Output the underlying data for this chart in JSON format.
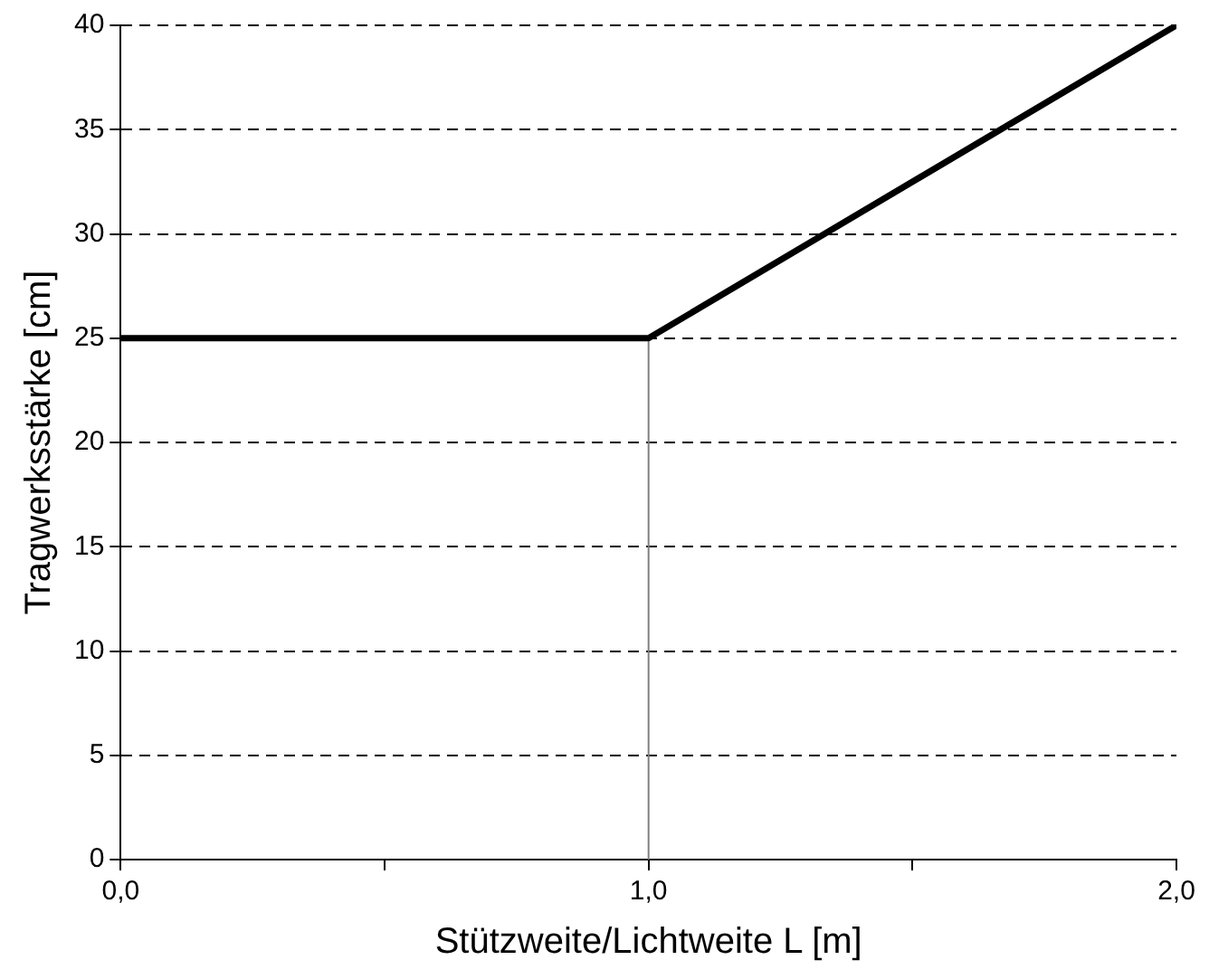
{
  "chart_data": {
    "type": "line",
    "xlabel": "Stützweite/Lichtweite L [m]",
    "ylabel": "Tragwerksstärke [cm]",
    "x": [
      0,
      1,
      2
    ],
    "series": [
      {
        "color": "#000000",
        "values": [
          25,
          25,
          40
        ]
      },
      {
        "color": "#808080",
        "x": [
          1,
          1
        ],
        "values": [
          0,
          25
        ]
      }
    ],
    "xlim": [
      0,
      2
    ],
    "xticks": [
      {
        "value": 0,
        "label": "0,0"
      },
      {
        "value": 0.5,
        "label": null
      },
      {
        "value": 1,
        "label": "1,0"
      },
      {
        "value": 1.5,
        "label": null
      },
      {
        "value": 2,
        "label": "2,0"
      }
    ],
    "ylim": [
      0,
      40
    ],
    "yticks": [
      0,
      5,
      10,
      15,
      20,
      25,
      30,
      35,
      40
    ],
    "grid": "y",
    "legend": false,
    "marker": "none",
    "line_style": "solid"
  }
}
